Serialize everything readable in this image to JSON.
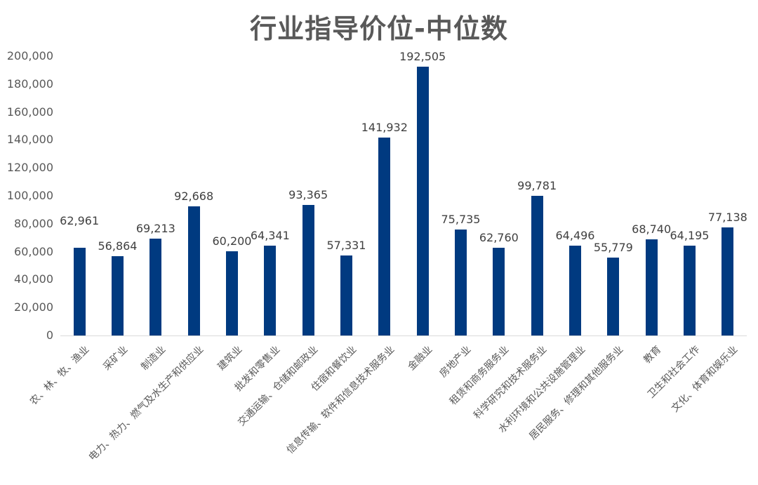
{
  "chart_data": {
    "type": "bar",
    "title": "行业指导价位-中位数",
    "xlabel": "",
    "ylabel": "",
    "ylim": [
      0,
      200000
    ],
    "yticks": [
      "0",
      "20,000",
      "40,000",
      "60,000",
      "80,000",
      "100,000",
      "120,000",
      "140,000",
      "160,000",
      "180,000",
      "200,000"
    ],
    "grid": false,
    "legend": null,
    "bar_color": "#003a80",
    "categories": [
      "农、林、牧、渔业",
      "采矿业",
      "制造业",
      "电力、热力、燃气及水生产和供应业",
      "建筑业",
      "批发和零售业",
      "交通运输、仓储和邮政业",
      "住宿和餐饮业",
      "信息传输、软件和信息技术服务业",
      "金融业",
      "房地产业",
      "租赁和商务服务业",
      "科学研究和技术服务业",
      "水利环境和公共设施管理业",
      "居民服务、修理和其他服务业",
      "教育",
      "卫生和社会工作",
      "文化、体育和娱乐业"
    ],
    "values": [
      62961,
      56864,
      69213,
      92668,
      60200,
      64341,
      93365,
      57331,
      141932,
      192505,
      75735,
      62760,
      99781,
      64496,
      55779,
      68740,
      64195,
      77138
    ],
    "value_labels": [
      "62,961",
      "56,864",
      "69,213",
      "92,668",
      "60,200",
      "64,341",
      "93,365",
      "57,331",
      "141,932",
      "192,505",
      "75,735",
      "62,760",
      "99,781",
      "64,496",
      "55,779",
      "68,740",
      "64,195",
      "77,138"
    ]
  }
}
